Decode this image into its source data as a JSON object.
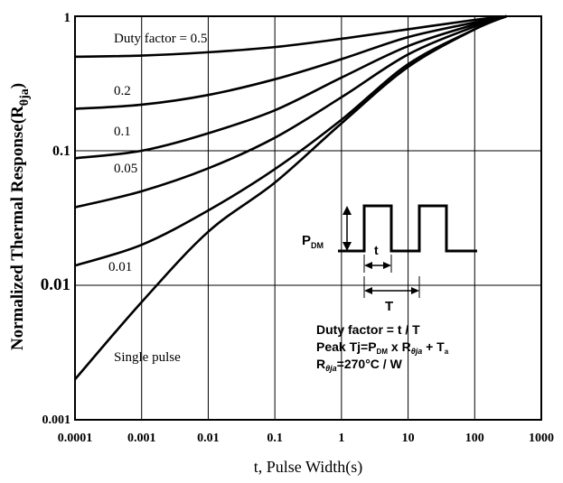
{
  "chart_data": {
    "type": "line",
    "x_scale": "log",
    "y_scale": "log",
    "xlim": [
      0.0001,
      1000
    ],
    "ylim": [
      0.001,
      1
    ],
    "xlabel": "t, Pulse Width(s)",
    "ylabel_main": "Normalized Thermal Response(R",
    "ylabel_sub": "θja",
    "ylabel_close": ")",
    "x_ticks": [
      "0.0001",
      "0.001",
      "0.01",
      "0.1",
      "1",
      "10",
      "100",
      "1000"
    ],
    "y_ticks": [
      "1",
      "0.1",
      "0.01",
      "0.001"
    ],
    "grid": true,
    "series": [
      {
        "name": "Duty factor = 0.5",
        "x": [
          0.0001,
          0.001,
          0.01,
          0.1,
          1,
          10,
          100,
          300
        ],
        "y": [
          0.5,
          0.51,
          0.54,
          0.59,
          0.68,
          0.8,
          0.94,
          1.0
        ]
      },
      {
        "name": "0.2",
        "x": [
          0.0001,
          0.001,
          0.01,
          0.1,
          1,
          10,
          100,
          300
        ],
        "y": [
          0.205,
          0.22,
          0.26,
          0.34,
          0.48,
          0.7,
          0.9,
          1.0
        ]
      },
      {
        "name": "0.1",
        "x": [
          0.0001,
          0.001,
          0.01,
          0.1,
          1,
          10,
          100,
          300
        ],
        "y": [
          0.088,
          0.1,
          0.135,
          0.2,
          0.35,
          0.6,
          0.87,
          1.0
        ]
      },
      {
        "name": "0.05",
        "x": [
          0.0001,
          0.001,
          0.01,
          0.1,
          1,
          10,
          100,
          300
        ],
        "y": [
          0.038,
          0.05,
          0.074,
          0.125,
          0.25,
          0.52,
          0.84,
          1.0
        ]
      },
      {
        "name": "0.01",
        "x": [
          0.0001,
          0.001,
          0.01,
          0.1,
          1,
          10,
          100,
          300
        ],
        "y": [
          0.014,
          0.02,
          0.036,
          0.073,
          0.17,
          0.44,
          0.8,
          1.0
        ]
      },
      {
        "name": "Single pulse",
        "x": [
          0.0001,
          0.001,
          0.01,
          0.1,
          1,
          10,
          100,
          300
        ],
        "y": [
          0.002,
          0.0075,
          0.025,
          0.058,
          0.16,
          0.42,
          0.8,
          1.0
        ]
      }
    ],
    "annotations": {
      "inset": {
        "pdm_main": "P",
        "pdm_sub": "DM",
        "t_label": "t",
        "T_label": "T"
      },
      "formula_line1": "Duty factor = t / T",
      "formula_line2": {
        "a": "Peak Tj=P",
        "a_sub": "DM",
        "b": " x R",
        "b_sub": "θja",
        "c": " + T",
        "c_sub": "a"
      },
      "formula_line3": {
        "a": "R",
        "a_sub": "θja",
        "b": "=270°C / W"
      }
    }
  }
}
